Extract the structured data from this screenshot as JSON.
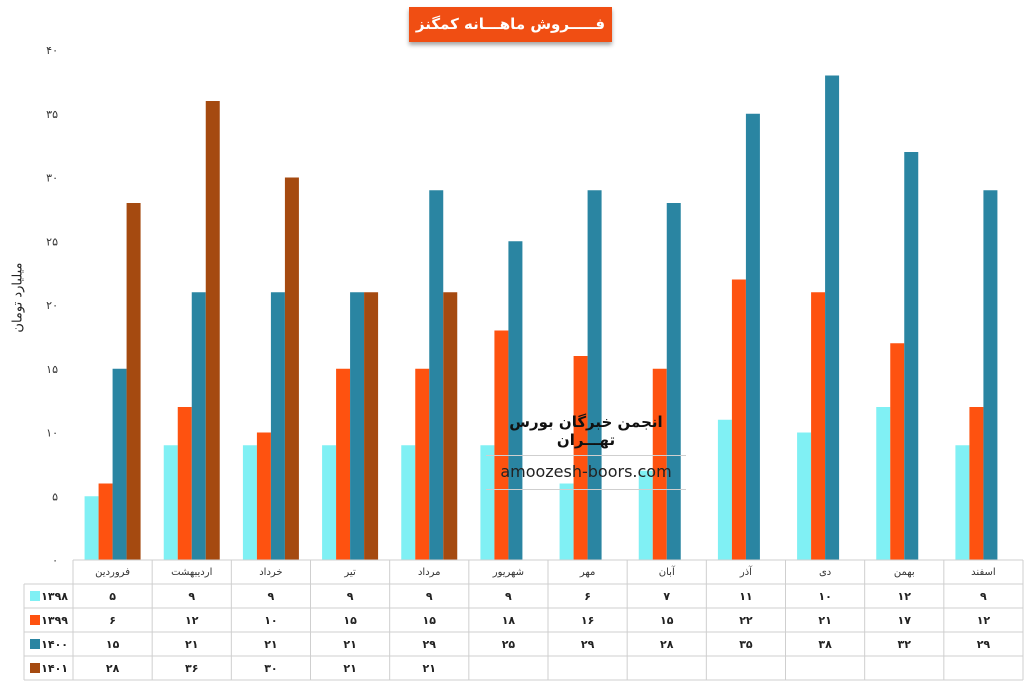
{
  "chart_data": {
    "type": "bar",
    "title": "فـــــروش ماهـــانه کمگنز",
    "ylabel": "میلیارد تومان",
    "ylim": [
      0,
      40
    ],
    "yticks": [
      "۰",
      "۵",
      "۱۰",
      "۱۵",
      "۲۰",
      "۲۵",
      "۳۰",
      "۳۵",
      "۴۰"
    ],
    "grid": false,
    "legend": "table-left",
    "categories": [
      "فروردین",
      "اردیبهشت",
      "خرداد",
      "تیر",
      "مرداد",
      "شهریور",
      "مهر",
      "آبان",
      "آذر",
      "دی",
      "بهمن",
      "اسفند"
    ],
    "series": [
      {
        "name": "۱۳۹۸",
        "color": "#80f0f4",
        "values": [
          5,
          9,
          9,
          9,
          9,
          9,
          6,
          7,
          11,
          10,
          12,
          9
        ],
        "labels": [
          "۵",
          "۹",
          "۹",
          "۹",
          "۹",
          "۹",
          "۶",
          "۷",
          "۱۱",
          "۱۰",
          "۱۲",
          "۹"
        ]
      },
      {
        "name": "۱۳۹۹",
        "color": "#fe5210",
        "values": [
          6,
          12,
          10,
          15,
          15,
          18,
          16,
          15,
          22,
          21,
          17,
          12
        ],
        "labels": [
          "۶",
          "۱۲",
          "۱۰",
          "۱۵",
          "۱۵",
          "۱۸",
          "۱۶",
          "۱۵",
          "۲۲",
          "۲۱",
          "۱۷",
          "۱۲"
        ]
      },
      {
        "name": "۱۴۰۰",
        "color": "#2a85a2",
        "values": [
          15,
          21,
          21,
          21,
          29,
          25,
          29,
          28,
          35,
          38,
          32,
          29
        ],
        "labels": [
          "۱۵",
          "۲۱",
          "۲۱",
          "۲۱",
          "۲۹",
          "۲۵",
          "۲۹",
          "۲۸",
          "۳۵",
          "۳۸",
          "۳۲",
          "۲۹"
        ]
      },
      {
        "name": "۱۴۰۱",
        "color": "#a54a10",
        "values": [
          28,
          36,
          30,
          21,
          21,
          null,
          null,
          null,
          null,
          null,
          null,
          null
        ],
        "labels": [
          "۲۸",
          "۳۶",
          "۳۰",
          "۲۱",
          "۲۱",
          "",
          "",
          "",
          "",
          "",
          "",
          ""
        ]
      }
    ]
  },
  "watermark": {
    "name": "انجمن خبرگان بورس تهـــران",
    "url": "amoozesh-boors.com"
  }
}
